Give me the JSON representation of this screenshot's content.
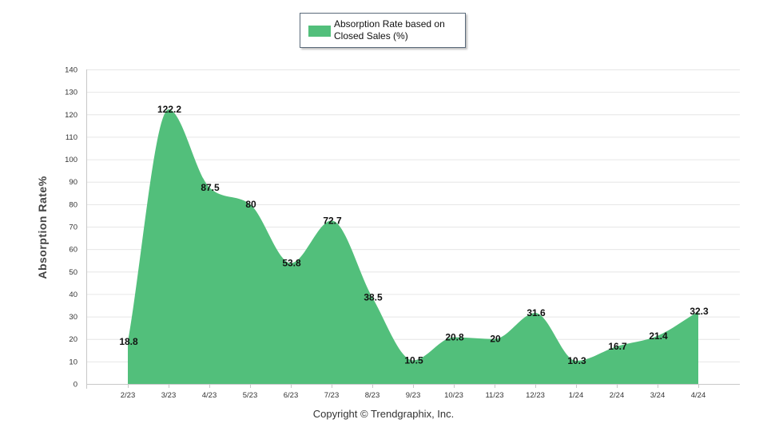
{
  "chart_data": {
    "type": "area",
    "categories": [
      "2/23",
      "3/23",
      "4/23",
      "5/23",
      "6/23",
      "7/23",
      "8/23",
      "9/23",
      "10/23",
      "11/23",
      "12/23",
      "1/24",
      "2/24",
      "3/24",
      "4/24"
    ],
    "series": [
      {
        "name": "Absorption Rate based on Closed Sales (%)",
        "values": [
          18.8,
          122.2,
          87.5,
          80,
          53.8,
          72.7,
          38.5,
          10.5,
          20.8,
          20,
          31.6,
          10.3,
          16.7,
          21.4,
          32.3
        ],
        "labels": [
          "18.8",
          "122.2",
          "87.5",
          "80",
          "53.8",
          "72.7",
          "38.5",
          "10.5",
          "20.8",
          "20",
          "31.6",
          "10.3",
          "16.7",
          "21.4",
          "32.3"
        ]
      }
    ],
    "ylabel": "Absorption Rate%",
    "xlabel": "",
    "ylim": [
      0,
      140
    ],
    "yticks": [
      0,
      10,
      20,
      30,
      40,
      50,
      60,
      70,
      80,
      90,
      100,
      110,
      120,
      130,
      140
    ],
    "ytick_labels": [
      "0",
      "10",
      "20",
      "30",
      "40",
      "50",
      "60",
      "70",
      "80",
      "90",
      "100",
      "110",
      "120",
      "130",
      "140"
    ],
    "grid": true,
    "legend_position": "top-center",
    "colors": {
      "fill": "#52bf7b",
      "grid": "#e6e6e6",
      "axis": "#c8c8c8"
    }
  },
  "legend": {
    "label_line1": "Absorption Rate based on",
    "label_line2": "Closed Sales (%)"
  },
  "footer": {
    "copyright": "Copyright © Trendgraphix, Inc."
  }
}
